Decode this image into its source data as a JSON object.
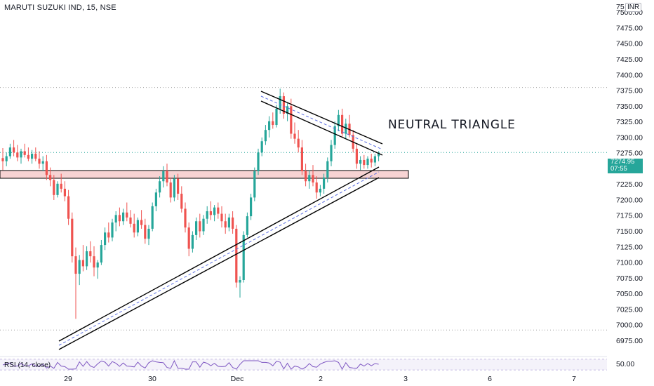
{
  "header": {
    "symbol_title": "MARUTI SUZUKI IND, 15, NSE",
    "currency": "INR"
  },
  "annotation": "NEUTRAL TRIANGLE",
  "last_price": {
    "value": "7274.95",
    "countdown": "07:55",
    "color": "#26a69a"
  },
  "rsi": {
    "label": "RSI (14, close)",
    "value": "50.00",
    "color": "#7e57c2"
  },
  "colors": {
    "up": "#26a69a",
    "down": "#ef5350",
    "zone_fill": "#f7d3d3",
    "trendline": "#000000",
    "channel": "#5b6ee1"
  },
  "chart_data": {
    "type": "candlestick",
    "title": "MARUTI SUZUKI IND, 15, NSE",
    "ylim": [
      6962,
      7512
    ],
    "y_ticks": [
      7500,
      7475,
      7450,
      7425,
      7400,
      7375,
      7350,
      7325,
      7300,
      7275,
      7250,
      7225,
      7200,
      7175,
      7150,
      7125,
      7100,
      7075,
      7050,
      7025,
      7000,
      6975
    ],
    "y_tick_labels": [
      "7500.00",
      "7475.00",
      "7450.00",
      "7425.00",
      "7400.00",
      "7375.00",
      "7350.00",
      "7325.00",
      "7300.00",
      "7275.00",
      "7250.00",
      "7225.00",
      "7200.00",
      "7175.00",
      "7150.00",
      "7125.00",
      "7100.00",
      "7075.00",
      "7050.00",
      "7025.00",
      "7000.00",
      "6975.00"
    ],
    "y_top_label_partial": "75",
    "x_labels": [
      "29",
      "30",
      "Dec",
      "2",
      "3",
      "6",
      "7"
    ],
    "last_price": 7274.95,
    "horizontal_levels": [
      7380,
      7276,
      6992
    ],
    "support_zone": [
      7250,
      7262
    ],
    "pattern": "Neutral triangle",
    "ohlc": [
      [
        7267,
        7283,
        7248,
        7262
      ],
      [
        7262,
        7276,
        7254,
        7270
      ],
      [
        7270,
        7290,
        7266,
        7284
      ],
      [
        7284,
        7296,
        7270,
        7276
      ],
      [
        7276,
        7288,
        7262,
        7268
      ],
      [
        7268,
        7282,
        7258,
        7278
      ],
      [
        7278,
        7290,
        7268,
        7272
      ],
      [
        7272,
        7284,
        7262,
        7266
      ],
      [
        7266,
        7280,
        7258,
        7274
      ],
      [
        7274,
        7284,
        7262,
        7266
      ],
      [
        7266,
        7278,
        7250,
        7258
      ],
      [
        7258,
        7270,
        7246,
        7262
      ],
      [
        7262,
        7272,
        7232,
        7240
      ],
      [
        7240,
        7252,
        7222,
        7232
      ],
      [
        7232,
        7240,
        7200,
        7208
      ],
      [
        7208,
        7230,
        7204,
        7226
      ],
      [
        7226,
        7242,
        7212,
        7218
      ],
      [
        7218,
        7230,
        7198,
        7206
      ],
      [
        7206,
        7216,
        7160,
        7170
      ],
      [
        7170,
        7180,
        7100,
        7110
      ],
      [
        7110,
        7124,
        7010,
        7082
      ],
      [
        7082,
        7112,
        7064,
        7104
      ],
      [
        7104,
        7128,
        7086,
        7094
      ],
      [
        7094,
        7126,
        7088,
        7118
      ],
      [
        7118,
        7134,
        7100,
        7110
      ],
      [
        7110,
        7126,
        7078,
        7092
      ],
      [
        7092,
        7104,
        7074,
        7100
      ],
      [
        7100,
        7136,
        7096,
        7128
      ],
      [
        7128,
        7156,
        7120,
        7148
      ],
      [
        7148,
        7164,
        7132,
        7140
      ],
      [
        7140,
        7170,
        7134,
        7164
      ],
      [
        7164,
        7182,
        7150,
        7176
      ],
      [
        7176,
        7188,
        7158,
        7166
      ],
      [
        7166,
        7186,
        7160,
        7180
      ],
      [
        7180,
        7196,
        7166,
        7172
      ],
      [
        7172,
        7184,
        7156,
        7162
      ],
      [
        7162,
        7178,
        7140,
        7148
      ],
      [
        7148,
        7172,
        7142,
        7168
      ],
      [
        7168,
        7184,
        7154,
        7160
      ],
      [
        7160,
        7170,
        7130,
        7138
      ],
      [
        7138,
        7160,
        7128,
        7154
      ],
      [
        7154,
        7196,
        7150,
        7190
      ],
      [
        7190,
        7218,
        7182,
        7212
      ],
      [
        7212,
        7238,
        7204,
        7230
      ],
      [
        7230,
        7254,
        7220,
        7246
      ],
      [
        7246,
        7258,
        7222,
        7228
      ],
      [
        7228,
        7236,
        7196,
        7204
      ],
      [
        7204,
        7240,
        7198,
        7234
      ],
      [
        7234,
        7242,
        7200,
        7210
      ],
      [
        7210,
        7222,
        7180,
        7186
      ],
      [
        7186,
        7196,
        7148,
        7156
      ],
      [
        7156,
        7164,
        7110,
        7122
      ],
      [
        7122,
        7150,
        7116,
        7144
      ],
      [
        7144,
        7172,
        7136,
        7166
      ],
      [
        7166,
        7178,
        7140,
        7150
      ],
      [
        7150,
        7176,
        7144,
        7170
      ],
      [
        7170,
        7190,
        7162,
        7182
      ],
      [
        7182,
        7198,
        7168,
        7176
      ],
      [
        7176,
        7192,
        7166,
        7188
      ],
      [
        7188,
        7196,
        7170,
        7178
      ],
      [
        7178,
        7190,
        7156,
        7166
      ],
      [
        7166,
        7178,
        7146,
        7156
      ],
      [
        7156,
        7178,
        7150,
        7172
      ],
      [
        7172,
        7182,
        7146,
        7154
      ],
      [
        7154,
        7160,
        7060,
        7068
      ],
      [
        7068,
        7078,
        7044,
        7072
      ],
      [
        7072,
        7150,
        7068,
        7144
      ],
      [
        7144,
        7180,
        7140,
        7174
      ],
      [
        7174,
        7210,
        7168,
        7204
      ],
      [
        7204,
        7252,
        7198,
        7246
      ],
      [
        7246,
        7282,
        7240,
        7276
      ],
      [
        7276,
        7300,
        7270,
        7294
      ],
      [
        7294,
        7320,
        7288,
        7312
      ],
      [
        7312,
        7334,
        7300,
        7326
      ],
      [
        7326,
        7340,
        7314,
        7320
      ],
      [
        7320,
        7352,
        7316,
        7346
      ],
      [
        7346,
        7378,
        7338,
        7366
      ],
      [
        7366,
        7372,
        7330,
        7338
      ],
      [
        7338,
        7356,
        7326,
        7350
      ],
      [
        7350,
        7362,
        7298,
        7306
      ],
      [
        7306,
        7324,
        7290,
        7298
      ],
      [
        7298,
        7312,
        7276,
        7284
      ],
      [
        7284,
        7296,
        7240,
        7246
      ],
      [
        7246,
        7258,
        7222,
        7230
      ],
      [
        7230,
        7248,
        7218,
        7240
      ],
      [
        7240,
        7256,
        7222,
        7228
      ],
      [
        7228,
        7238,
        7202,
        7212
      ],
      [
        7212,
        7224,
        7206,
        7218
      ],
      [
        7218,
        7242,
        7210,
        7236
      ],
      [
        7236,
        7268,
        7228,
        7262
      ],
      [
        7262,
        7296,
        7254,
        7288
      ],
      [
        7288,
        7326,
        7282,
        7318
      ],
      [
        7318,
        7344,
        7310,
        7336
      ],
      [
        7336,
        7346,
        7300,
        7306
      ],
      [
        7306,
        7330,
        7298,
        7322
      ],
      [
        7322,
        7336,
        7300,
        7304
      ],
      [
        7304,
        7312,
        7276,
        7282
      ],
      [
        7282,
        7290,
        7250,
        7258
      ],
      [
        7258,
        7270,
        7248,
        7264
      ],
      [
        7264,
        7272,
        7250,
        7256
      ],
      [
        7256,
        7270,
        7250,
        7266
      ],
      [
        7266,
        7274,
        7252,
        7260
      ],
      [
        7260,
        7274,
        7254,
        7270
      ],
      [
        7270,
        7278,
        7262,
        7275
      ]
    ]
  }
}
